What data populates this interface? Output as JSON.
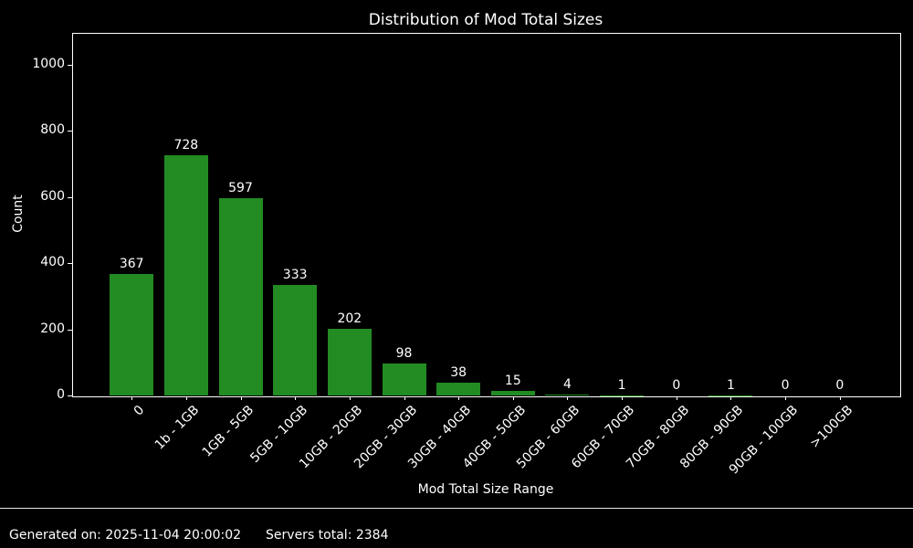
{
  "chart_data": {
    "type": "bar",
    "title": "Distribution of Mod Total Sizes",
    "xlabel": "Mod Total Size Range",
    "ylabel": "Count",
    "categories": [
      "0",
      "1b - 1GB",
      "1GB - 5GB",
      "5GB - 10GB",
      "10GB - 20GB",
      "20GB - 30GB",
      "30GB - 40GB",
      "40GB - 50GB",
      "50GB - 60GB",
      "60GB - 70GB",
      "70GB - 80GB",
      "80GB - 90GB",
      "90GB - 100GB",
      ">100GB"
    ],
    "values": [
      367,
      728,
      597,
      333,
      202,
      98,
      38,
      15,
      4,
      1,
      0,
      1,
      0,
      0
    ],
    "value_labels_shown": true,
    "yticks": [
      0,
      200,
      400,
      600,
      800,
      1000
    ],
    "ylim": [
      0,
      1097
    ],
    "x_tick_rotation_deg": 45,
    "grid": false,
    "legend": "none",
    "bar_color": "#228B22",
    "background_color": "#000000",
    "text_color": "#ffffff",
    "axis_frame_color": "#ffffff"
  },
  "footer": {
    "generated_on": "Generated on: 2025-11-04 20:00:02",
    "servers_total": "Servers total: 2384"
  }
}
